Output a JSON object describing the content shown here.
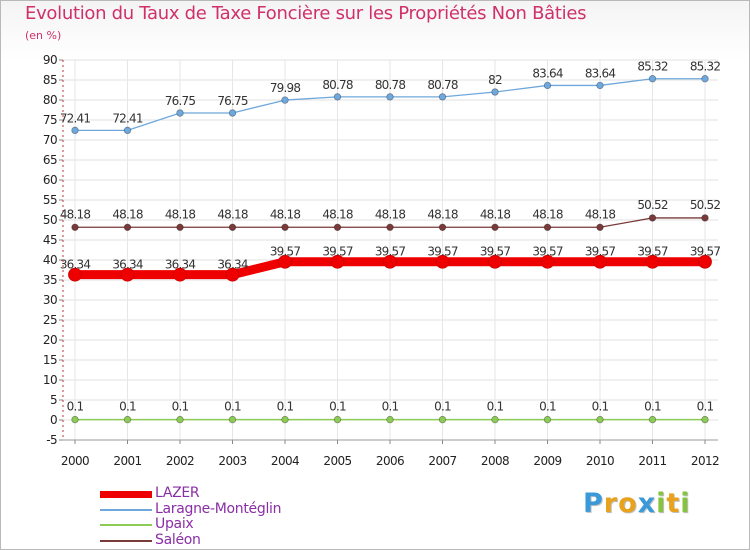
{
  "title": "Evolution du Taux de Taxe Foncière sur les Propriétés Non Bâties",
  "subtitle": "(en %)",
  "logo": {
    "letters": [
      "P",
      "r",
      "o",
      "x",
      "i",
      "t",
      "i"
    ],
    "colors": [
      "#3a9ad9",
      "#e8a21c",
      "#e8a21c",
      "#3a9ad9",
      "#86c440",
      "#e8a21c",
      "#86c440"
    ]
  },
  "chart_data": {
    "type": "line",
    "title": "Evolution du Taux de Taxe Foncière sur les Propriétés Non Bâties",
    "ylabel": "(en %)",
    "xlabel": "",
    "x": [
      "2000",
      "2001",
      "2002",
      "2003",
      "2004",
      "2005",
      "2006",
      "2007",
      "2008",
      "2009",
      "2010",
      "2011",
      "2012"
    ],
    "ylim": [
      -5,
      90
    ],
    "yticks": [
      -5,
      0,
      5,
      10,
      15,
      20,
      25,
      30,
      35,
      40,
      45,
      50,
      55,
      60,
      65,
      70,
      75,
      80,
      85,
      90
    ],
    "grid": true,
    "legend": "bottom-left",
    "series": [
      {
        "name": "LAZER",
        "color": "#ee0000",
        "values": [
          36.34,
          36.34,
          36.34,
          36.34,
          39.57,
          39.57,
          39.57,
          39.57,
          39.57,
          39.57,
          39.57,
          39.57,
          39.57
        ],
        "labels": [
          "36.34",
          "36.34",
          "36.34",
          "36.34",
          "39.57",
          "39.57",
          "39.57",
          "39.57",
          "39.57",
          "39.57",
          "39.57",
          "39.57",
          "39.57"
        ]
      },
      {
        "name": "Laragne-Montéglin",
        "color": "#6fa8dc",
        "values": [
          72.41,
          72.41,
          76.75,
          76.75,
          79.98,
          80.78,
          80.78,
          80.78,
          82,
          83.64,
          83.64,
          85.32,
          85.32
        ],
        "labels": [
          "72.41",
          "72.41",
          "76.75",
          "76.75",
          "79.98",
          "80.78",
          "80.78",
          "80.78",
          "82",
          "83.64",
          "83.64",
          "85.32",
          "85.32"
        ]
      },
      {
        "name": "Upaix",
        "color": "#8ccc56",
        "values": [
          0.1,
          0.1,
          0.1,
          0.1,
          0.1,
          0.1,
          0.1,
          0.1,
          0.1,
          0.1,
          0.1,
          0.1,
          0.1
        ],
        "labels": [
          "0.1",
          "0.1",
          "0.1",
          "0.1",
          "0.1",
          "0.1",
          "0.1",
          "0.1",
          "0.1",
          "0.1",
          "0.1",
          "0.1",
          "0.1"
        ]
      },
      {
        "name": "Saléon",
        "color": "#7a3a3a",
        "values": [
          48.18,
          48.18,
          48.18,
          48.18,
          48.18,
          48.18,
          48.18,
          48.18,
          48.18,
          48.18,
          48.18,
          50.52,
          50.52
        ],
        "labels": [
          "48.18",
          "48.18",
          "48.18",
          "48.18",
          "48.18",
          "48.18",
          "48.18",
          "48.18",
          "48.18",
          "48.18",
          "48.18",
          "50.52",
          "50.52"
        ]
      }
    ]
  }
}
